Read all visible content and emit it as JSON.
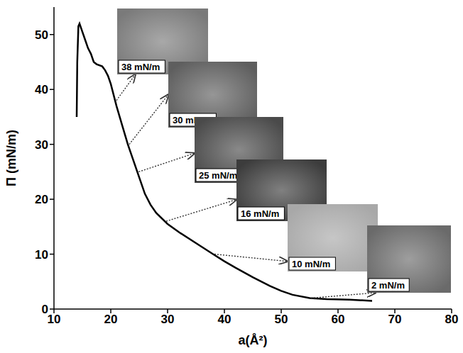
{
  "chart_data": {
    "type": "line",
    "x_label": "a(Å²)",
    "y_label": "Π (mN/m)",
    "x": [
      66,
      62,
      58,
      55,
      52,
      50,
      48,
      45,
      42,
      40,
      38,
      35,
      32,
      30,
      28,
      27,
      26,
      25,
      24,
      23,
      22,
      21,
      20.5,
      20,
      19.5,
      19,
      18.5,
      17.5,
      17,
      16.5,
      16,
      15.5,
      15,
      14.5,
      14.3,
      14.1,
      14.05,
      14
    ],
    "values": [
      1.5,
      1.7,
      1.8,
      2.0,
      2.6,
      3.3,
      4.2,
      5.8,
      7.5,
      8.7,
      10,
      12,
      14,
      15.5,
      17.5,
      19,
      21,
      24,
      27,
      30,
      33.5,
      37,
      39,
      41,
      42.5,
      43.5,
      44.2,
      44.6,
      45,
      46.5,
      47.5,
      49,
      50.5,
      52,
      51.5,
      45,
      40,
      35
    ],
    "color": "#000000",
    "xlim": [
      10,
      80
    ],
    "xticks": [
      10,
      20,
      30,
      40,
      50,
      60,
      70,
      80
    ],
    "ylim": [
      0,
      55
    ],
    "yticks": [
      0,
      10,
      20,
      30,
      40,
      50
    ],
    "grid": false,
    "annotations": [
      {
        "value": 38,
        "label": "38 mN/m"
      },
      {
        "value": 30,
        "label": "30 mN/m"
      },
      {
        "value": 25,
        "label": "25 mN/m"
      },
      {
        "value": 16,
        "label": "16 mN/m"
      },
      {
        "value": 10,
        "label": "10 mN/m"
      },
      {
        "value": 2,
        "label": "2 mN/m"
      }
    ]
  }
}
